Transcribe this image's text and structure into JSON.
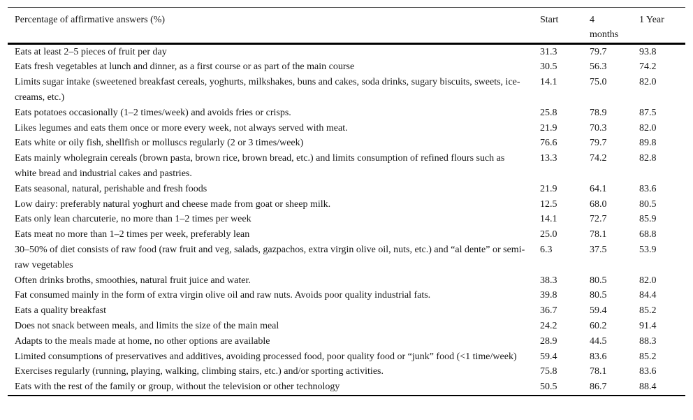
{
  "table": {
    "header": {
      "label": "Percentage of affirmative answers (%)",
      "col_start": "Start",
      "col_4months_line1": "4",
      "col_4months_line2": "months",
      "col_1year": "1 Year"
    },
    "rows": [
      {
        "label": "Eats at least 2–5 pieces of fruit per day",
        "start": "31.3",
        "m4": "79.7",
        "y1": "93.8"
      },
      {
        "label": "Eats fresh vegetables at lunch and dinner, as a first course or as part of the main course",
        "start": "30.5",
        "m4": "56.3",
        "y1": "74.2"
      },
      {
        "label": "Limits sugar intake (sweetened breakfast cereals, yoghurts, milkshakes, buns and cakes, soda drinks, sugary biscuits, sweets, ice-creams, etc.)",
        "start": "14.1",
        "m4": "75.0",
        "y1": "82.0"
      },
      {
        "label": "Eats potatoes occasionally (1–2 times/week) and avoids fries or crisps.",
        "start": "25.8",
        "m4": "78.9",
        "y1": "87.5"
      },
      {
        "label": "Likes legumes and eats them once or more every week, not always served with meat.",
        "start": "21.9",
        "m4": "70.3",
        "y1": "82.0"
      },
      {
        "label": "Eats white or oily fish, shellfish or molluscs regularly (2 or 3 times/week)",
        "start": "76.6",
        "m4": "79.7",
        "y1": "89.8"
      },
      {
        "label": "Eats mainly wholegrain cereals (brown pasta, brown rice, brown bread, etc.) and limits consumption of refined flours such as white bread and industrial cakes and pastries.",
        "start": "13.3",
        "m4": "74.2",
        "y1": "82.8"
      },
      {
        "label": "Eats seasonal, natural, perishable and fresh foods",
        "start": "21.9",
        "m4": "64.1",
        "y1": "83.6"
      },
      {
        "label": "Low dairy: preferably natural yoghurt and cheese made from goat or sheep milk.",
        "start": "12.5",
        "m4": "68.0",
        "y1": "80.5"
      },
      {
        "label": "Eats only lean charcuterie, no more than 1–2 times per week",
        "start": "14.1",
        "m4": "72.7",
        "y1": "85.9"
      },
      {
        "label": "Eats meat no more than 1–2 times per week, preferably lean",
        "start": "25.0",
        "m4": "78.1",
        "y1": "68.8"
      },
      {
        "label": "30–50% of diet consists of raw food (raw fruit and veg, salads, gazpachos, extra virgin olive oil, nuts, etc.) and “al dente” or semi-raw vegetables",
        "start": "6.3",
        "m4": "37.5",
        "y1": "53.9"
      },
      {
        "label": "Often drinks broths, smoothies, natural fruit juice and water.",
        "start": "38.3",
        "m4": "80.5",
        "y1": "82.0"
      },
      {
        "label": "Fat consumed mainly in the form of extra virgin olive oil and raw nuts. Avoids poor quality industrial fats.",
        "start": "39.8",
        "m4": "80.5",
        "y1": "84.4"
      },
      {
        "label": "Eats a quality breakfast",
        "start": "36.7",
        "m4": "59.4",
        "y1": "85.2"
      },
      {
        "label": "Does not snack between meals, and limits the size of the main meal",
        "start": "24.2",
        "m4": "60.2",
        "y1": "91.4"
      },
      {
        "label": "Adapts to the meals made at home, no other options are available",
        "start": "28.9",
        "m4": "44.5",
        "y1": "88.3"
      },
      {
        "label": "Limited consumptions of preservatives and additives, avoiding processed food, poor quality food or “junk” food (<1 time/week)",
        "start": "59.4",
        "m4": "83.6",
        "y1": "85.2"
      },
      {
        "label": "Exercises regularly (running, playing, walking, climbing stairs, etc.) and/or sporting activities.",
        "start": "75.8",
        "m4": "78.1",
        "y1": "83.6"
      },
      {
        "label": "Eats with the rest of the family or group, without the television or other technology",
        "start": "50.5",
        "m4": "86.7",
        "y1": "88.4"
      }
    ]
  }
}
